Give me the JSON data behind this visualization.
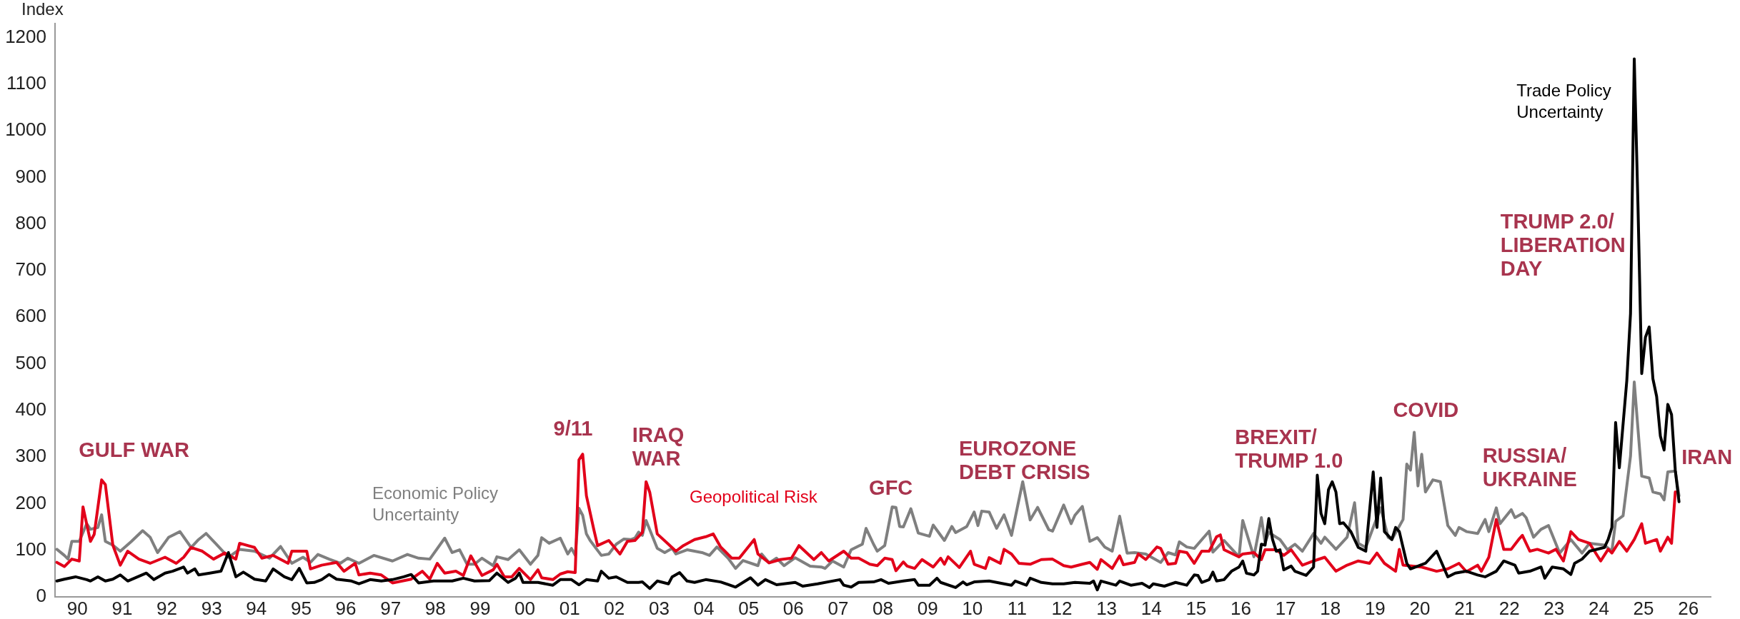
{
  "chart_data": {
    "type": "line",
    "ylabel": "Index",
    "legend": false,
    "marker": "none",
    "line_style": "solid",
    "xlim": [
      "1990-01-01",
      "2027-01-01"
    ],
    "ylim": [
      0,
      1230
    ],
    "xticks": [
      {
        "value": "1990-07-01",
        "label": "90"
      },
      {
        "value": "1991-07-01",
        "label": "91"
      },
      {
        "value": "1992-07-01",
        "label": "92"
      },
      {
        "value": "1993-07-01",
        "label": "93"
      },
      {
        "value": "1994-07-01",
        "label": "94"
      },
      {
        "value": "1995-07-01",
        "label": "95"
      },
      {
        "value": "1996-07-01",
        "label": "96"
      },
      {
        "value": "1997-07-01",
        "label": "97"
      },
      {
        "value": "1998-07-01",
        "label": "98"
      },
      {
        "value": "1999-07-01",
        "label": "99"
      },
      {
        "value": "2000-07-01",
        "label": "00"
      },
      {
        "value": "2001-07-01",
        "label": "01"
      },
      {
        "value": "2002-07-01",
        "label": "02"
      },
      {
        "value": "2003-07-01",
        "label": "03"
      },
      {
        "value": "2004-07-01",
        "label": "04"
      },
      {
        "value": "2005-07-01",
        "label": "05"
      },
      {
        "value": "2006-07-01",
        "label": "06"
      },
      {
        "value": "2007-07-01",
        "label": "07"
      },
      {
        "value": "2008-07-01",
        "label": "08"
      },
      {
        "value": "2009-07-01",
        "label": "09"
      },
      {
        "value": "2010-07-01",
        "label": "10"
      },
      {
        "value": "2011-07-01",
        "label": "11"
      },
      {
        "value": "2012-07-01",
        "label": "12"
      },
      {
        "value": "2013-07-01",
        "label": "13"
      },
      {
        "value": "2014-07-01",
        "label": "14"
      },
      {
        "value": "2015-07-01",
        "label": "15"
      },
      {
        "value": "2016-07-01",
        "label": "16"
      },
      {
        "value": "2017-07-01",
        "label": "17"
      },
      {
        "value": "2018-07-01",
        "label": "18"
      },
      {
        "value": "2019-07-01",
        "label": "19"
      },
      {
        "value": "2020-07-01",
        "label": "20"
      },
      {
        "value": "2021-07-01",
        "label": "21"
      },
      {
        "value": "2022-07-01",
        "label": "22"
      },
      {
        "value": "2023-07-01",
        "label": "23"
      },
      {
        "value": "2024-07-01",
        "label": "24"
      },
      {
        "value": "2025-07-01",
        "label": "25"
      },
      {
        "value": "2026-07-01",
        "label": "26"
      }
    ],
    "yticks": [
      0,
      100,
      200,
      300,
      400,
      500,
      600,
      700,
      800,
      900,
      1000,
      1100,
      1200
    ],
    "series": [
      {
        "name": "Economic Policy\nUncertainty",
        "color": "#7f7f7f",
        "x": [
          "1990-01",
          "1990-03",
          "1990-04",
          "1990-05",
          "1990-07",
          "1990-09",
          "1990-10",
          "1990-12",
          "1991-01",
          "1991-02",
          "1991-04",
          "1991-06",
          "1991-09",
          "1991-12",
          "1992-02",
          "1992-04",
          "1992-07",
          "1992-10",
          "1993-01",
          "1993-03",
          "1993-05",
          "1993-08",
          "1993-11",
          "1994-02",
          "1994-06",
          "1994-10",
          "1995-01",
          "1995-04",
          "1995-07",
          "1995-09",
          "1995-11",
          "1996-02",
          "1996-05",
          "1996-07",
          "1996-10",
          "1997-02",
          "1997-07",
          "1997-11",
          "1998-02",
          "1998-05",
          "1998-09",
          "1998-11",
          "1999-01",
          "1999-03",
          "1999-05",
          "1999-07",
          "1999-10",
          "1999-11",
          "2000-02",
          "2000-05",
          "2000-08",
          "2000-10",
          "2000-11",
          "2001-01",
          "2001-04",
          "2001-06",
          "2001-07",
          "2001-08",
          "2001-09",
          "2001-10",
          "2001-11",
          "2001-12",
          "2002-03",
          "2002-05",
          "2002-07",
          "2002-09",
          "2002-11",
          "2002-12",
          "2003-01",
          "2003-02",
          "2003-03",
          "2003-06",
          "2003-08",
          "2003-10",
          "2003-11",
          "2004-02",
          "2004-06",
          "2004-08",
          "2004-10",
          "2005-01",
          "2005-03",
          "2005-05",
          "2005-09",
          "2005-10",
          "2005-12",
          "2006-02",
          "2006-04",
          "2006-07",
          "2006-11",
          "2007-02",
          "2007-03",
          "2007-05",
          "2007-08",
          "2007-10",
          "2008-01",
          "2008-02",
          "2008-04",
          "2008-05",
          "2008-07",
          "2008-09",
          "2008-10",
          "2008-11",
          "2008-12",
          "2009-02",
          "2009-04",
          "2009-07",
          "2009-08",
          "2009-11",
          "2010-01",
          "2010-02",
          "2010-05",
          "2010-07",
          "2010-08",
          "2010-09",
          "2010-11",
          "2011-01",
          "2011-03",
          "2011-05",
          "2011-08",
          "2011-10",
          "2011-12",
          "2012-03",
          "2012-04",
          "2012-07",
          "2012-09",
          "2012-10",
          "2012-12",
          "2013-02",
          "2013-04",
          "2013-06",
          "2013-08",
          "2013-10",
          "2013-12",
          "2014-02",
          "2014-05",
          "2014-09",
          "2014-11",
          "2015-01",
          "2015-02",
          "2015-04",
          "2015-06",
          "2015-10",
          "2015-11",
          "2016-02",
          "2016-06",
          "2016-07",
          "2016-10",
          "2016-12",
          "2017-01",
          "2017-02",
          "2017-05",
          "2017-07",
          "2017-09",
          "2017-11",
          "2018-01",
          "2018-02",
          "2018-04",
          "2018-05",
          "2018-07",
          "2018-08",
          "2018-11",
          "2019-01",
          "2019-02",
          "2019-04",
          "2019-06",
          "2019-08",
          "2019-10",
          "2019-11",
          "2020-02",
          "2020-03",
          "2020-04",
          "2020-05",
          "2020-06",
          "2020-07",
          "2020-08",
          "2020-10",
          "2020-12",
          "2021-02",
          "2021-04",
          "2021-05",
          "2021-07",
          "2021-10",
          "2021-12",
          "2022-01",
          "2022-03",
          "2022-04",
          "2022-07",
          "2022-08",
          "2022-10",
          "2022-11",
          "2023-01",
          "2023-03",
          "2023-05",
          "2023-08",
          "2023-11",
          "2024-02",
          "2024-04",
          "2024-08",
          "2024-10",
          "2024-11",
          "2025-01",
          "2025-03",
          "2025-04",
          "2025-06",
          "2025-08",
          "2025-09",
          "2025-11",
          "2025-12",
          "2026-01",
          "2026-03",
          "2026-04"
        ],
        "values": [
          102,
          89,
          81,
          119,
          119,
          157,
          145,
          149,
          176,
          119,
          111,
          98,
          119,
          142,
          128,
          95,
          128,
          140,
          106,
          123,
          136,
          111,
          85,
          102,
          98,
          83,
          108,
          72,
          85,
          74,
          91,
          81,
          72,
          83,
          72,
          89,
          77,
          91,
          83,
          81,
          126,
          95,
          101,
          70,
          70,
          83,
          67,
          86,
          80,
          101,
          70,
          89,
          127,
          115,
          126,
          92,
          104,
          89,
          190,
          175,
          135,
          121,
          89,
          92,
          113,
          124,
          123,
          126,
          139,
          132,
          164,
          104,
          95,
          104,
          92,
          101,
          95,
          89,
          107,
          83,
          61,
          78,
          67,
          92,
          73,
          83,
          67,
          84,
          66,
          64,
          61,
          77,
          64,
          101,
          113,
          147,
          113,
          98,
          110,
          193,
          192,
          151,
          150,
          189,
          137,
          130,
          154,
          121,
          151,
          138,
          151,
          182,
          153,
          184,
          182,
          147,
          176,
          132,
          247,
          165,
          192,
          144,
          141,
          197,
          157,
          175,
          194,
          119,
          127,
          107,
          98,
          173,
          94,
          95,
          92,
          74,
          95,
          90,
          118,
          107,
          104,
          141,
          96,
          121,
          86,
          164,
          86,
          170,
          116,
          138,
          123,
          101,
          113,
          98,
          123,
          136,
          115,
          128,
          111,
          102,
          128,
          202,
          115,
          106,
          149,
          191,
          128,
          123,
          166,
          285,
          272,
          353,
          238,
          306,
          225,
          251,
          247,
          153,
          132,
          149,
          140,
          136,
          166,
          140,
          191,
          157,
          187,
          170,
          179,
          170,
          128,
          145,
          153,
          94,
          123,
          94,
          115,
          111,
          98,
          162,
          174,
          302,
          461,
          259,
          255,
          225,
          221,
          208,
          268,
          270,
          217
        ]
      },
      {
        "name": "Geopolitical Risk",
        "color": "#e2001a",
        "x": [
          "1990-01",
          "1990-03",
          "1990-05",
          "1990-07",
          "1990-08",
          "1990-10",
          "1990-11",
          "1991-01",
          "1991-02",
          "1991-04",
          "1991-06",
          "1991-08",
          "1991-11",
          "1992-02",
          "1992-06",
          "1992-09",
          "1992-11",
          "1993-01",
          "1993-04",
          "1993-07",
          "1993-10",
          "1994-01",
          "1994-02",
          "1994-06",
          "1994-08",
          "1994-11",
          "1995-03",
          "1995-04",
          "1995-08",
          "1995-09",
          "1995-12",
          "1996-04",
          "1996-06",
          "1996-09",
          "1996-10",
          "1997-01",
          "1997-04",
          "1997-07",
          "1997-12",
          "1998-03",
          "1998-05",
          "1998-07",
          "1998-09",
          "1998-12",
          "1999-02",
          "1999-04",
          "1999-07",
          "1999-10",
          "1999-11",
          "2000-01",
          "2000-03",
          "2000-05",
          "2000-08",
          "2000-10",
          "2000-11",
          "2001-02",
          "2001-04",
          "2001-06",
          "2001-08",
          "2001-09",
          "2001-10",
          "2001-11",
          "2002-01",
          "2002-02",
          "2002-05",
          "2002-08",
          "2002-10",
          "2002-12",
          "2003-02",
          "2003-03",
          "2003-04",
          "2003-06",
          "2003-09",
          "2003-11",
          "2004-01",
          "2004-04",
          "2004-07",
          "2004-09",
          "2004-11",
          "2005-02",
          "2005-04",
          "2005-08",
          "2005-09",
          "2005-12",
          "2006-03",
          "2006-06",
          "2006-08",
          "2006-10",
          "2006-12",
          "2007-02",
          "2007-04",
          "2007-08",
          "2007-10",
          "2007-12",
          "2008-03",
          "2008-05",
          "2008-07",
          "2008-09",
          "2008-10",
          "2008-12",
          "2009-01",
          "2009-03",
          "2009-05",
          "2009-08",
          "2009-10",
          "2009-11",
          "2009-12",
          "2010-03",
          "2010-06",
          "2010-07",
          "2010-10",
          "2010-11",
          "2011-02",
          "2011-03",
          "2011-05",
          "2011-07",
          "2011-10",
          "2012-01",
          "2012-04",
          "2012-07",
          "2012-09",
          "2012-12",
          "2013-02",
          "2013-04",
          "2013-05",
          "2013-08",
          "2013-10",
          "2013-11",
          "2014-02",
          "2014-03",
          "2014-05",
          "2014-08",
          "2014-09",
          "2014-11",
          "2015-01",
          "2015-02",
          "2015-04",
          "2015-06",
          "2015-08",
          "2015-10",
          "2015-12",
          "2016-01",
          "2016-02",
          "2016-06",
          "2016-07",
          "2016-10",
          "2016-12",
          "2017-01",
          "2017-04",
          "2017-06",
          "2017-08",
          "2017-11",
          "2018-02",
          "2018-05",
          "2018-08",
          "2018-11",
          "2019-02",
          "2019-05",
          "2019-07",
          "2019-09",
          "2019-12",
          "2020-01",
          "2020-02",
          "2020-07",
          "2020-11",
          "2021-02",
          "2021-05",
          "2021-07",
          "2021-10",
          "2021-11",
          "2022-01",
          "2022-03",
          "2022-05",
          "2022-07",
          "2022-09",
          "2022-10",
          "2022-12",
          "2023-02",
          "2023-05",
          "2023-07",
          "2023-09",
          "2023-11",
          "2024-01",
          "2024-04",
          "2024-07",
          "2024-09",
          "2024-10",
          "2024-12",
          "2025-02",
          "2025-04",
          "2025-06",
          "2025-07",
          "2025-10",
          "2025-11",
          "2026-01",
          "2026-02",
          "2026-03"
        ],
        "values": [
          74,
          65,
          81,
          77,
          193,
          119,
          134,
          251,
          241,
          111,
          68,
          98,
          81,
          72,
          85,
          72,
          85,
          106,
          98,
          81,
          94,
          81,
          115,
          106,
          83,
          89,
          72,
          98,
          98,
          60,
          68,
          74,
          55,
          72,
          47,
          51,
          47,
          30,
          38,
          55,
          38,
          72,
          51,
          55,
          46,
          88,
          46,
          58,
          70,
          43,
          43,
          61,
          37,
          58,
          41,
          37,
          49,
          54,
          52,
          294,
          306,
          217,
          144,
          110,
          121,
          92,
          119,
          121,
          138,
          247,
          224,
          135,
          113,
          98,
          110,
          123,
          129,
          135,
          107,
          83,
          83,
          123,
          92,
          73,
          80,
          83,
          110,
          95,
          80,
          95,
          77,
          98,
          83,
          83,
          70,
          67,
          83,
          80,
          56,
          75,
          66,
          61,
          80,
          64,
          83,
          70,
          86,
          63,
          98,
          70,
          61,
          84,
          72,
          102,
          92,
          72,
          70,
          80,
          81,
          67,
          64,
          70,
          74,
          59,
          80,
          61,
          88,
          69,
          74,
          92,
          80,
          107,
          104,
          70,
          72,
          98,
          95,
          72,
          98,
          98,
          129,
          133,
          101,
          86,
          92,
          95,
          80,
          101,
          101,
          89,
          101,
          68,
          77,
          85,
          55,
          68,
          77,
          72,
          94,
          72,
          55,
          102,
          68,
          64,
          55,
          60,
          72,
          54,
          68,
          55,
          85,
          166,
          102,
          102,
          123,
          132,
          98,
          102,
          94,
          102,
          77,
          140,
          123,
          115,
          77,
          102,
          94,
          119,
          98,
          123,
          157,
          115,
          123,
          98,
          128,
          115,
          225
        ]
      },
      {
        "name": "Trade Policy\nUncertainty",
        "color": "#000000",
        "x": [
          "1990-01",
          "1990-03",
          "1990-06",
          "1990-09",
          "1990-10",
          "1990-12",
          "1991-02",
          "1991-04",
          "1991-06",
          "1991-08",
          "1992-01",
          "1992-03",
          "1992-06",
          "1992-08",
          "1992-11",
          "1992-12",
          "1993-02",
          "1993-03",
          "1993-06",
          "1993-09",
          "1993-11",
          "1994-01",
          "1994-03",
          "1994-06",
          "1994-09",
          "1994-11",
          "1995-02",
          "1995-04",
          "1995-06",
          "1995-08",
          "1995-10",
          "1995-12",
          "1996-02",
          "1996-04",
          "1996-08",
          "1996-10",
          "1997-01",
          "1997-04",
          "1997-07",
          "1997-10",
          "1997-12",
          "1998-02",
          "1998-06",
          "1998-11",
          "1999-02",
          "1999-05",
          "1999-09",
          "1999-11",
          "2000-02",
          "2000-04",
          "2000-05",
          "2000-06",
          "2000-10",
          "2001-02",
          "2001-04",
          "2001-07",
          "2001-09",
          "2001-11",
          "2002-02",
          "2002-03",
          "2002-05",
          "2002-07",
          "2002-10",
          "2003-01",
          "2003-02",
          "2003-04",
          "2003-06",
          "2003-09",
          "2003-10",
          "2003-12",
          "2004-02",
          "2004-04",
          "2004-07",
          "2004-11",
          "2005-03",
          "2005-07",
          "2005-09",
          "2005-11",
          "2006-02",
          "2006-07",
          "2006-09",
          "2007-01",
          "2007-07",
          "2007-08",
          "2007-10",
          "2007-12",
          "2008-04",
          "2008-06",
          "2008-08",
          "2008-12",
          "2009-03",
          "2009-04",
          "2009-07",
          "2009-09",
          "2009-10",
          "2010-02",
          "2010-04",
          "2010-05",
          "2010-07",
          "2010-11",
          "2011-03",
          "2011-05",
          "2011-06",
          "2011-09",
          "2011-10",
          "2012-01",
          "2012-04",
          "2012-07",
          "2012-10",
          "2013-02",
          "2013-03",
          "2013-04",
          "2013-05",
          "2013-09",
          "2013-10",
          "2014-01",
          "2014-04",
          "2014-06",
          "2014-07",
          "2014-10",
          "2015-01",
          "2015-04",
          "2015-06",
          "2015-07",
          "2015-08",
          "2015-10",
          "2015-11",
          "2015-12",
          "2016-02",
          "2016-04",
          "2016-06",
          "2016-07",
          "2016-08",
          "2016-10",
          "2016-11",
          "2016-12",
          "2017-01",
          "2017-02",
          "2017-03",
          "2017-04",
          "2017-05",
          "2017-06",
          "2017-08",
          "2017-09",
          "2017-12",
          "2018-02",
          "2018-03",
          "2018-04",
          "2018-05",
          "2018-06",
          "2018-07",
          "2018-08",
          "2018-09",
          "2018-10",
          "2018-12",
          "2019-02",
          "2019-04",
          "2019-06",
          "2019-07",
          "2019-08",
          "2019-09",
          "2019-11",
          "2019-12",
          "2020-01",
          "2020-03",
          "2020-04",
          "2020-06",
          "2020-08",
          "2020-11",
          "2021-02",
          "2021-04",
          "2021-07",
          "2021-10",
          "2021-12",
          "2022-03",
          "2022-05",
          "2022-08",
          "2022-09",
          "2022-12",
          "2023-03",
          "2023-04",
          "2023-06",
          "2023-09",
          "2023-11",
          "2023-12",
          "2024-02",
          "2024-04",
          "2024-08",
          "2024-09",
          "2024-10",
          "2024-11",
          "2024-12",
          "2025-02",
          "2025-03",
          "2025-04",
          "2025-05",
          "2025-06",
          "2025-07",
          "2025-08",
          "2025-09",
          "2025-10",
          "2025-11",
          "2025-12",
          "2026-01",
          "2026-02",
          "2026-03",
          "2026-04"
        ],
        "values": [
          34,
          38,
          43,
          37,
          34,
          43,
          34,
          38,
          47,
          34,
          51,
          37,
          51,
          55,
          64,
          51,
          60,
          47,
          51,
          55,
          95,
          43,
          53,
          38,
          34,
          60,
          43,
          37,
          61,
          30,
          31,
          37,
          48,
          38,
          34,
          28,
          37,
          34,
          37,
          43,
          48,
          30,
          34,
          34,
          40,
          34,
          35,
          51,
          31,
          40,
          51,
          31,
          31,
          25,
          37,
          37,
          26,
          37,
          34,
          55,
          40,
          43,
          31,
          31,
          32,
          18,
          34,
          28,
          43,
          52,
          34,
          31,
          37,
          32,
          21,
          41,
          25,
          37,
          26,
          31,
          23,
          28,
          37,
          25,
          21,
          31,
          32,
          37,
          29,
          34,
          37,
          25,
          25,
          40,
          31,
          20,
          32,
          26,
          32,
          34,
          28,
          25,
          34,
          25,
          40,
          31,
          28,
          28,
          31,
          29,
          34,
          15,
          34,
          25,
          34,
          25,
          29,
          20,
          28,
          23,
          31,
          25,
          47,
          46,
          31,
          37,
          53,
          34,
          37,
          55,
          64,
          77,
          51,
          47,
          55,
          113,
          111,
          168,
          123,
          98,
          101,
          58,
          66,
          55,
          46,
          64,
          261,
          179,
          157,
          230,
          247,
          225,
          157,
          159,
          140,
          106,
          98,
          268,
          149,
          255,
          140,
          123,
          149,
          140,
          72,
          60,
          66,
          72,
          98,
          43,
          51,
          55,
          47,
          43,
          55,
          77,
          68,
          51,
          55,
          64,
          40,
          64,
          60,
          48,
          72,
          81,
          98,
          106,
          123,
          149,
          374,
          277,
          464,
          608,
          1154,
          838,
          479,
          557,
          579,
          468,
          430,
          345,
          315,
          413,
          391,
          272,
          204
        ]
      }
    ],
    "annotations": [
      "GULF WAR",
      "9/11",
      "IRAQ\nWAR",
      "GFC",
      "EUROZONE\nDEBT CRISIS",
      "BREXIT/\nTRUMP 1.0",
      "COVID",
      "RUSSIA/\nUKRAINE",
      "TRUMP 2.0/\nLIBERATION\nDAY",
      "IRAN"
    ]
  }
}
